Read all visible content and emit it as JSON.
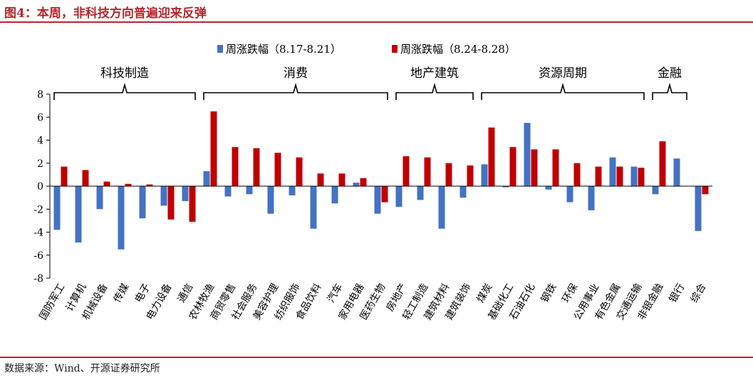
{
  "header": {
    "title": "图4：本周，非科技方向普遍迎来反弹"
  },
  "footer": {
    "source": "数据来源：Wind、开源证券研究所"
  },
  "chart_data": {
    "type": "bar",
    "title": "",
    "xlabel": "",
    "ylabel": "",
    "ylim": [
      -8,
      8
    ],
    "yticks": [
      -8,
      -6,
      -4,
      -2,
      0,
      2,
      4,
      6,
      8
    ],
    "legend_position": "top-center",
    "categories": [
      "国防军工",
      "计算机",
      "机械设备",
      "传媒",
      "电子",
      "电力设备",
      "通信",
      "农林牧渔",
      "商贸零售",
      "社会服务",
      "美容护理",
      "纺织服饰",
      "食品饮料",
      "汽车",
      "家用电器",
      "医药生物",
      "房地产",
      "轻工制造",
      "建筑材料",
      "建筑装饰",
      "煤炭",
      "基础化工",
      "石油石化",
      "钢铁",
      "环保",
      "公用事业",
      "有色金属",
      "交通运输",
      "非银金融",
      "银行",
      "综合"
    ],
    "series": [
      {
        "name": "周涨跌幅（8.17-8.21）",
        "color": "#4472c4",
        "values": [
          -3.8,
          -4.9,
          -2.0,
          -5.5,
          -2.8,
          -1.7,
          -1.3,
          1.3,
          -0.9,
          -0.7,
          -2.4,
          -0.8,
          -3.7,
          -1.5,
          0.3,
          -2.4,
          -1.8,
          -1.2,
          -3.7,
          -1.0,
          1.9,
          -0.1,
          5.5,
          -0.3,
          -1.4,
          -2.1,
          2.5,
          1.7,
          -0.7,
          2.4,
          -3.9
        ]
      },
      {
        "name": "周涨跌幅（8.24-8.28）",
        "color": "#c00000",
        "values": [
          1.7,
          1.4,
          0.4,
          0.2,
          0.15,
          -2.9,
          -3.1,
          6.5,
          3.4,
          3.3,
          2.9,
          2.5,
          1.1,
          1.1,
          0.7,
          -1.4,
          2.6,
          2.5,
          2.0,
          1.8,
          5.1,
          3.4,
          3.2,
          3.2,
          2.0,
          1.7,
          1.7,
          1.6,
          3.9,
          0.0,
          -0.7
        ]
      }
    ],
    "groups": [
      {
        "label": "科技制造",
        "start": 0,
        "end": 6
      },
      {
        "label": "消费",
        "start": 7,
        "end": 15
      },
      {
        "label": "地产建筑",
        "start": 16,
        "end": 19
      },
      {
        "label": "资源周期",
        "start": 20,
        "end": 27
      },
      {
        "label": "金融",
        "start": 28,
        "end": 29
      }
    ]
  }
}
